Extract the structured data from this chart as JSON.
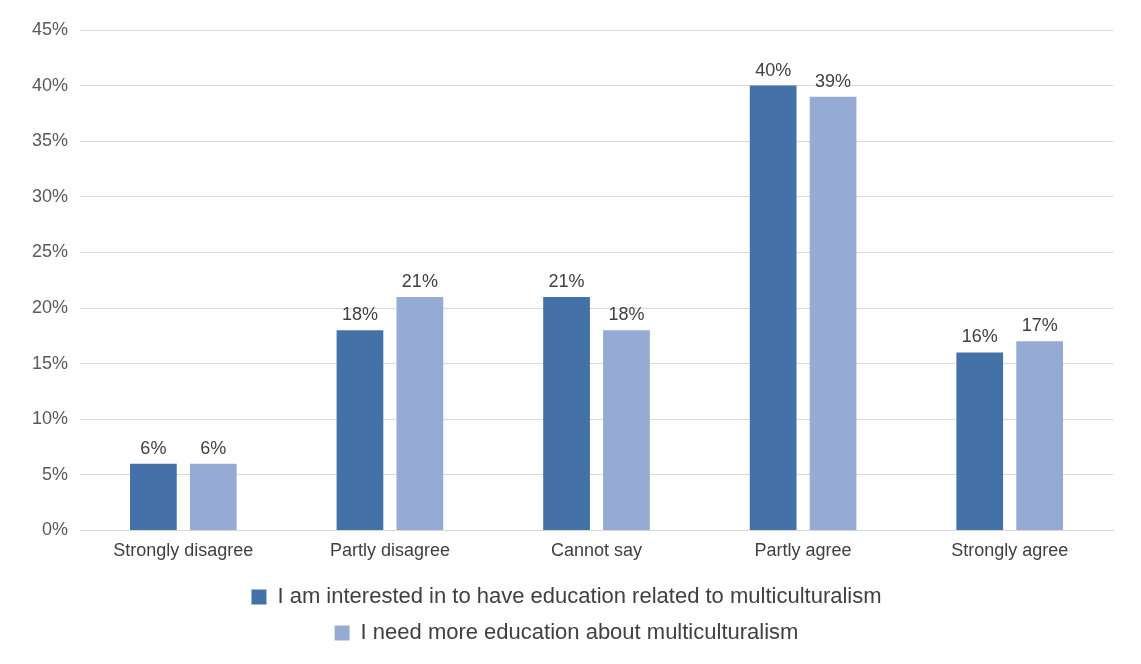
{
  "chart_data": {
    "type": "bar",
    "categories": [
      "Strongly disagree",
      "Partly disagree",
      "Cannot say",
      "Partly agree",
      "Strongly agree"
    ],
    "series": [
      {
        "name": "I am interested in to have education related to multiculturalism",
        "color": "#4472a8",
        "values": [
          6,
          18,
          21,
          40,
          16
        ],
        "value_labels": [
          "6%",
          "18%",
          "21%",
          "40%",
          "16%"
        ]
      },
      {
        "name": "I need more education about multiculturalism",
        "color": "#95abd3",
        "values": [
          6,
          21,
          18,
          39,
          17
        ],
        "value_labels": [
          "6%",
          "21%",
          "18%",
          "39%",
          "17%"
        ]
      }
    ],
    "ylim": [
      0,
      45
    ],
    "yticks": [
      {
        "value": 0,
        "label": "0%"
      },
      {
        "value": 5,
        "label": "5%"
      },
      {
        "value": 10,
        "label": "10%"
      },
      {
        "value": 15,
        "label": "15%"
      },
      {
        "value": 20,
        "label": "20%"
      },
      {
        "value": 25,
        "label": "25%"
      },
      {
        "value": 30,
        "label": "30%"
      },
      {
        "value": 35,
        "label": "35%"
      },
      {
        "value": 40,
        "label": "40%"
      },
      {
        "value": 45,
        "label": "45%"
      }
    ],
    "grid": "y",
    "legend": "bottom"
  }
}
